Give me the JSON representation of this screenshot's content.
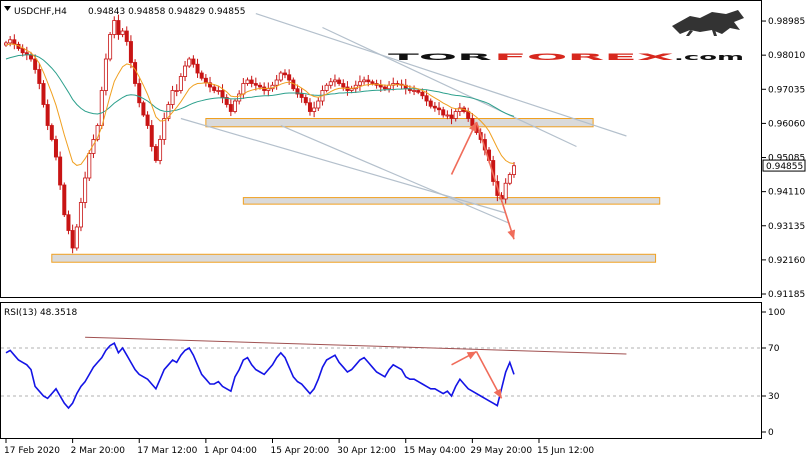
{
  "header": {
    "symbol": "USDCHF,H4",
    "ohlc": "0.94843 0.94858 0.94829 0.94855"
  },
  "logo": {
    "part1": "TOR",
    "part2": "FOREX",
    "part3": ".com"
  },
  "current_price_label": "0.94855",
  "rsi_header": "RSI(13) 48.3518",
  "colors": {
    "candle": "#c81414",
    "ma_fast": "#f0a020",
    "ma_slow": "#2ca08c",
    "rsi": "#1414e6",
    "zone_fill": "#dadada",
    "zone_stroke": "#f0a020",
    "channel": "#b4c0cc",
    "arrow": "#f06c5a",
    "rsi_trend": "#a05050"
  },
  "chart_data": [
    {
      "type": "line",
      "series_kind": "candlestick",
      "y_ticks": [
        "0.98985",
        "0.98010",
        "0.97035",
        "0.96060",
        "0.95085",
        "0.94110",
        "0.93135",
        "0.92160",
        "0.91185"
      ],
      "ylim": [
        0.91185,
        0.99472
      ],
      "x_ticks": [
        "17 Feb 2020",
        "2 Mar 20:00",
        "17 Mar 12:00",
        "1 Apr 04:00",
        "15 Apr 20:00",
        "30 Apr 12:00",
        "15 May 04:00",
        "29 May 20:00",
        "15 Jun 12:00"
      ],
      "x_tick_index": [
        0,
        16,
        32,
        48,
        64,
        80,
        96,
        112,
        128
      ],
      "close": [
        0.9836,
        0.9845,
        0.9832,
        0.982,
        0.9808,
        0.9802,
        0.979,
        0.976,
        0.972,
        0.966,
        0.96,
        0.956,
        0.951,
        0.943,
        0.9345,
        0.93,
        0.925,
        0.931,
        0.938,
        0.945,
        0.952,
        0.956,
        0.96,
        0.97,
        0.979,
        0.986,
        0.99,
        0.986,
        0.987,
        0.984,
        0.978,
        0.972,
        0.9665,
        0.963,
        0.96,
        0.954,
        0.95,
        0.956,
        0.962,
        0.966,
        0.97,
        0.97,
        0.974,
        0.977,
        0.979,
        0.9775,
        0.975,
        0.9735,
        0.9722,
        0.971,
        0.97,
        0.97,
        0.968,
        0.966,
        0.964,
        0.967,
        0.969,
        0.972,
        0.973,
        0.972,
        0.9715,
        0.971,
        0.97,
        0.9705,
        0.9715,
        0.973,
        0.975,
        0.9745,
        0.973,
        0.9705,
        0.969,
        0.968,
        0.9665,
        0.964,
        0.965,
        0.967,
        0.97,
        0.9715,
        0.9725,
        0.973,
        0.972,
        0.971,
        0.97,
        0.9705,
        0.9715,
        0.9725,
        0.973,
        0.9725,
        0.972,
        0.9715,
        0.971,
        0.9705,
        0.9715,
        0.972,
        0.9718,
        0.9715,
        0.9705,
        0.97,
        0.97,
        0.9695,
        0.9685,
        0.967,
        0.9655,
        0.965,
        0.9645,
        0.963,
        0.963,
        0.962,
        0.964,
        0.965,
        0.964,
        0.962,
        0.96,
        0.958,
        0.956,
        0.953,
        0.95,
        0.944,
        0.94,
        0.939,
        0.9435,
        0.946,
        0.9485
      ],
      "ma_fast": [
        0.983,
        0.9833,
        0.9832,
        0.9828,
        0.9822,
        0.9815,
        0.9808,
        0.9795,
        0.9778,
        0.9752,
        0.9723,
        0.9692,
        0.9658,
        0.9617,
        0.9573,
        0.9534,
        0.9496,
        0.9486,
        0.9489,
        0.9505,
        0.9525,
        0.9545,
        0.9565,
        0.9597,
        0.964,
        0.9685,
        0.9726,
        0.9748,
        0.9768,
        0.9776,
        0.9773,
        0.976,
        0.9739,
        0.9715,
        0.9689,
        0.9658,
        0.9625,
        0.9613,
        0.9614,
        0.9624,
        0.9638,
        0.9652,
        0.9668,
        0.9686,
        0.9705,
        0.9715,
        0.972,
        0.9721,
        0.9722,
        0.972,
        0.9717,
        0.9713,
        0.9705,
        0.9696,
        0.9684,
        0.9682,
        0.9684,
        0.969,
        0.9697,
        0.9701,
        0.9704,
        0.9706,
        0.9706,
        0.9706,
        0.9708,
        0.9712,
        0.9718,
        0.9722,
        0.9724,
        0.972,
        0.9714,
        0.9707,
        0.9699,
        0.9688,
        0.9683,
        0.9681,
        0.9685,
        0.969,
        0.9697,
        0.9703,
        0.9706,
        0.9707,
        0.9706,
        0.9706,
        0.9708,
        0.9711,
        0.9715,
        0.9717,
        0.9718,
        0.9718,
        0.9717,
        0.9715,
        0.9715,
        0.9716,
        0.9717,
        0.9716,
        0.9714,
        0.9711,
        0.9708,
        0.9705,
        0.97,
        0.9694,
        0.9686,
        0.9679,
        0.9672,
        0.9664,
        0.9658,
        0.9651,
        0.9648,
        0.9648,
        0.9646,
        0.9641,
        0.9633,
        0.9624,
        0.9613,
        0.96,
        0.9584,
        0.956,
        0.9536,
        0.9514,
        0.95,
        0.9493,
        0.9491
      ],
      "ma_slow": [
        0.979,
        0.9794,
        0.9797,
        0.98,
        0.9801,
        0.9802,
        0.9802,
        0.98,
        0.9795,
        0.9787,
        0.9776,
        0.9764,
        0.975,
        0.9733,
        0.9714,
        0.9695,
        0.9675,
        0.966,
        0.9649,
        0.9641,
        0.9637,
        0.9634,
        0.9633,
        0.9636,
        0.9643,
        0.9653,
        0.9664,
        0.9672,
        0.968,
        0.9686,
        0.9688,
        0.9687,
        0.9683,
        0.9677,
        0.967,
        0.9661,
        0.9651,
        0.9644,
        0.9641,
        0.964,
        0.9642,
        0.9644,
        0.9648,
        0.9653,
        0.9659,
        0.9664,
        0.9668,
        0.9671,
        0.9674,
        0.9676,
        0.9678,
        0.9679,
        0.9679,
        0.9678,
        0.9676,
        0.9676,
        0.9677,
        0.9678,
        0.968,
        0.9681,
        0.9683,
        0.9684,
        0.9685,
        0.9685,
        0.9686,
        0.9688,
        0.969,
        0.9692,
        0.9693,
        0.9693,
        0.9693,
        0.9692,
        0.9691,
        0.9688,
        0.9687,
        0.9686,
        0.9687,
        0.9688,
        0.969,
        0.9691,
        0.9693,
        0.9693,
        0.9694,
        0.9694,
        0.9695,
        0.9696,
        0.9698,
        0.9699,
        0.97,
        0.9701,
        0.9701,
        0.9702,
        0.9702,
        0.9703,
        0.9704,
        0.9704,
        0.9705,
        0.9705,
        0.9705,
        0.9704,
        0.9703,
        0.9702,
        0.97,
        0.9698,
        0.9696,
        0.9693,
        0.9691,
        0.9688,
        0.9686,
        0.9685,
        0.9683,
        0.9681,
        0.9678,
        0.9675,
        0.9671,
        0.9667,
        0.9662,
        0.9655,
        0.9648,
        0.9641,
        0.9635,
        0.963,
        0.9626
      ],
      "zones": [
        {
          "y1": 0.962,
          "y2": 0.9602,
          "x1": 48,
          "x2": 141
        },
        {
          "y1": 0.9394,
          "y2": 0.9381,
          "x1": 57,
          "x2": 157
        },
        {
          "y1": 0.9232,
          "y2": 0.9215,
          "x1": 11,
          "x2": 156
        }
      ],
      "channel_lines": [
        {
          "x1": 60,
          "y1": 0.992,
          "x2": 149,
          "y2": 0.957
        },
        {
          "x1": 76,
          "y1": 0.988,
          "x2": 137,
          "y2": 0.954
        },
        {
          "x1": 42,
          "y1": 0.962,
          "x2": 120,
          "y2": 0.935
        },
        {
          "x1": 66,
          "y1": 0.96,
          "x2": 121,
          "y2": 0.932
        }
      ],
      "forecast_arrows": [
        {
          "x1": 107,
          "y1": 0.946,
          "x2": 113,
          "y2": 0.961
        },
        {
          "x1": 113,
          "y1": 0.961,
          "x2": 122,
          "y2": 0.9275
        }
      ]
    },
    {
      "type": "line",
      "series_kind": "oscillator",
      "title": "RSI(13) 48.3518",
      "y_ticks": [
        "100",
        "70",
        "30",
        "0"
      ],
      "ylim": [
        0,
        100
      ],
      "levels": [
        70,
        30
      ],
      "values": [
        66,
        68,
        64,
        60,
        58,
        56,
        52,
        38,
        34,
        30,
        28,
        32,
        36,
        30,
        24,
        20,
        24,
        32,
        38,
        42,
        48,
        54,
        58,
        62,
        68,
        72,
        74,
        66,
        70,
        64,
        58,
        52,
        48,
        46,
        44,
        40,
        36,
        44,
        52,
        56,
        60,
        58,
        64,
        68,
        70,
        64,
        56,
        48,
        44,
        40,
        40,
        42,
        38,
        36,
        34,
        46,
        52,
        60,
        62,
        56,
        52,
        50,
        48,
        52,
        56,
        62,
        66,
        62,
        54,
        46,
        42,
        40,
        36,
        32,
        36,
        44,
        54,
        60,
        62,
        64,
        58,
        54,
        50,
        52,
        56,
        60,
        62,
        58,
        54,
        50,
        48,
        46,
        52,
        56,
        54,
        52,
        46,
        44,
        44,
        42,
        40,
        38,
        36,
        36,
        34,
        32,
        34,
        30,
        38,
        44,
        40,
        36,
        34,
        32,
        30,
        28,
        26,
        24,
        22,
        36,
        50,
        58,
        48
      ],
      "trendline": {
        "x1": 19,
        "y1": 79,
        "x2": 149,
        "y2": 65
      },
      "forecast_arrows": [
        {
          "x1": 107,
          "y1": 56,
          "x2": 113,
          "y2": 67
        },
        {
          "x1": 113,
          "y1": 67,
          "x2": 119,
          "y2": 28
        }
      ]
    }
  ]
}
